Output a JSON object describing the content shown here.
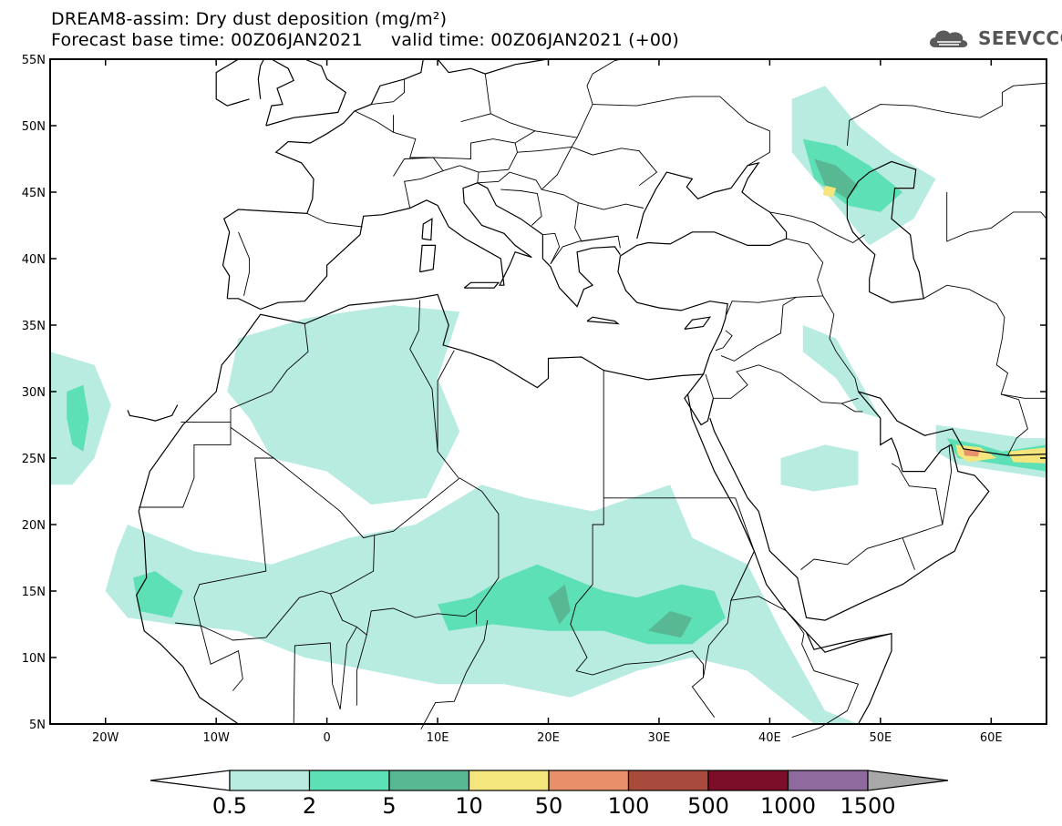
{
  "title": {
    "line1": "DREAM8-assim: Dry dust deposition (mg/m²)",
    "line2": "Forecast base time: 00Z06JAN2021     valid time: 00Z06JAN2021 (+00)"
  },
  "logo": {
    "text": "SEEVCCC"
  },
  "map": {
    "lon_range": [
      -25,
      65
    ],
    "lat_range": [
      5,
      55
    ],
    "lat_ticks": [
      {
        "value": 55,
        "label": "55N"
      },
      {
        "value": 50,
        "label": "50N"
      },
      {
        "value": 45,
        "label": "45N"
      },
      {
        "value": 40,
        "label": "40N"
      },
      {
        "value": 35,
        "label": "35N"
      },
      {
        "value": 30,
        "label": "30N"
      },
      {
        "value": 25,
        "label": "25N"
      },
      {
        "value": 20,
        "label": "20N"
      },
      {
        "value": 15,
        "label": "15N"
      },
      {
        "value": 10,
        "label": "10N"
      },
      {
        "value": 5,
        "label": "5N"
      }
    ],
    "lon_ticks": [
      {
        "value": -20,
        "label": "20W"
      },
      {
        "value": -10,
        "label": "10W"
      },
      {
        "value": 0,
        "label": "0"
      },
      {
        "value": 10,
        "label": "10E"
      },
      {
        "value": 20,
        "label": "20E"
      },
      {
        "value": 30,
        "label": "30E"
      },
      {
        "value": 40,
        "label": "40E"
      },
      {
        "value": 50,
        "label": "50E"
      },
      {
        "value": 60,
        "label": "60E"
      }
    ]
  },
  "colorbar": {
    "levels": [
      "0.5",
      "2",
      "5",
      "10",
      "50",
      "100",
      "500",
      "1000",
      "1500"
    ],
    "colors": [
      "#b8ece1",
      "#5ee0b6",
      "#58b894",
      "#f4e57c",
      "#e8906a",
      "#a84a3c",
      "#7c0e2a",
      "#8e6a9e"
    ],
    "min_color": "#ffffff",
    "max_color": "#a8a8a8"
  },
  "dust_colors": {
    "light": "#b8ece1",
    "mid": "#5ee0b6",
    "dark": "#58b894",
    "yellow": "#f4e57c",
    "orange": "#e8906a"
  }
}
